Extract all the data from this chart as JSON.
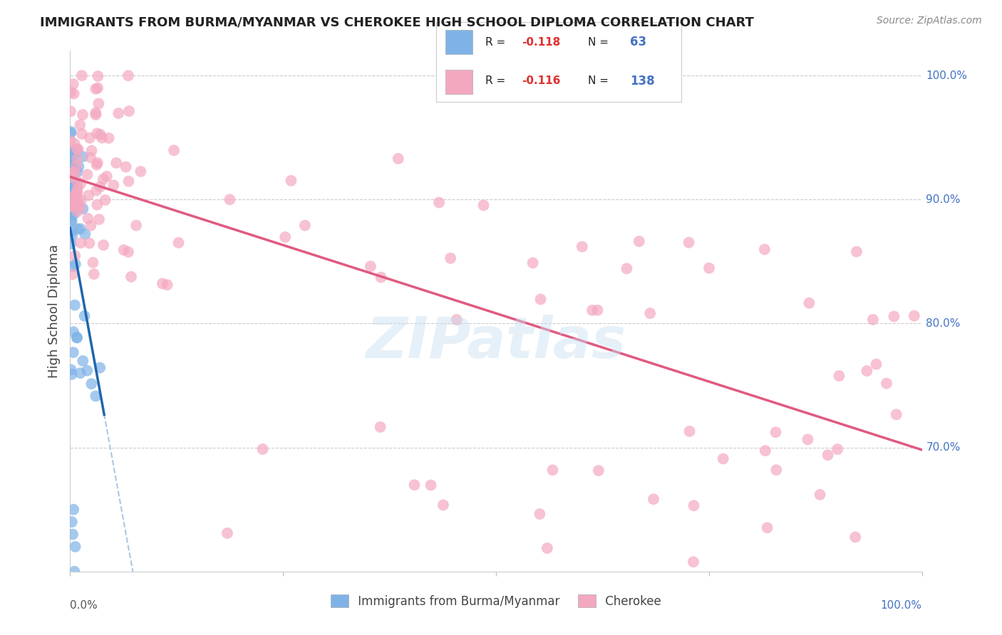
{
  "title": "IMMIGRANTS FROM BURMA/MYANMAR VS CHEROKEE HIGH SCHOOL DIPLOMA CORRELATION CHART",
  "source": "Source: ZipAtlas.com",
  "ylabel": "High School Diploma",
  "legend_blue_R": "-0.118",
  "legend_blue_N": "63",
  "legend_pink_R": "-0.116",
  "legend_pink_N": "138",
  "blue_color": "#7fb3e8",
  "pink_color": "#f4a8c0",
  "blue_line_color": "#2166ac",
  "pink_line_color": "#e05a80",
  "dashed_line_color": "#a8c8e8",
  "watermark": "ZIPatlas",
  "xlim": [
    0.0,
    1.0
  ],
  "ylim": [
    0.6,
    1.02
  ]
}
